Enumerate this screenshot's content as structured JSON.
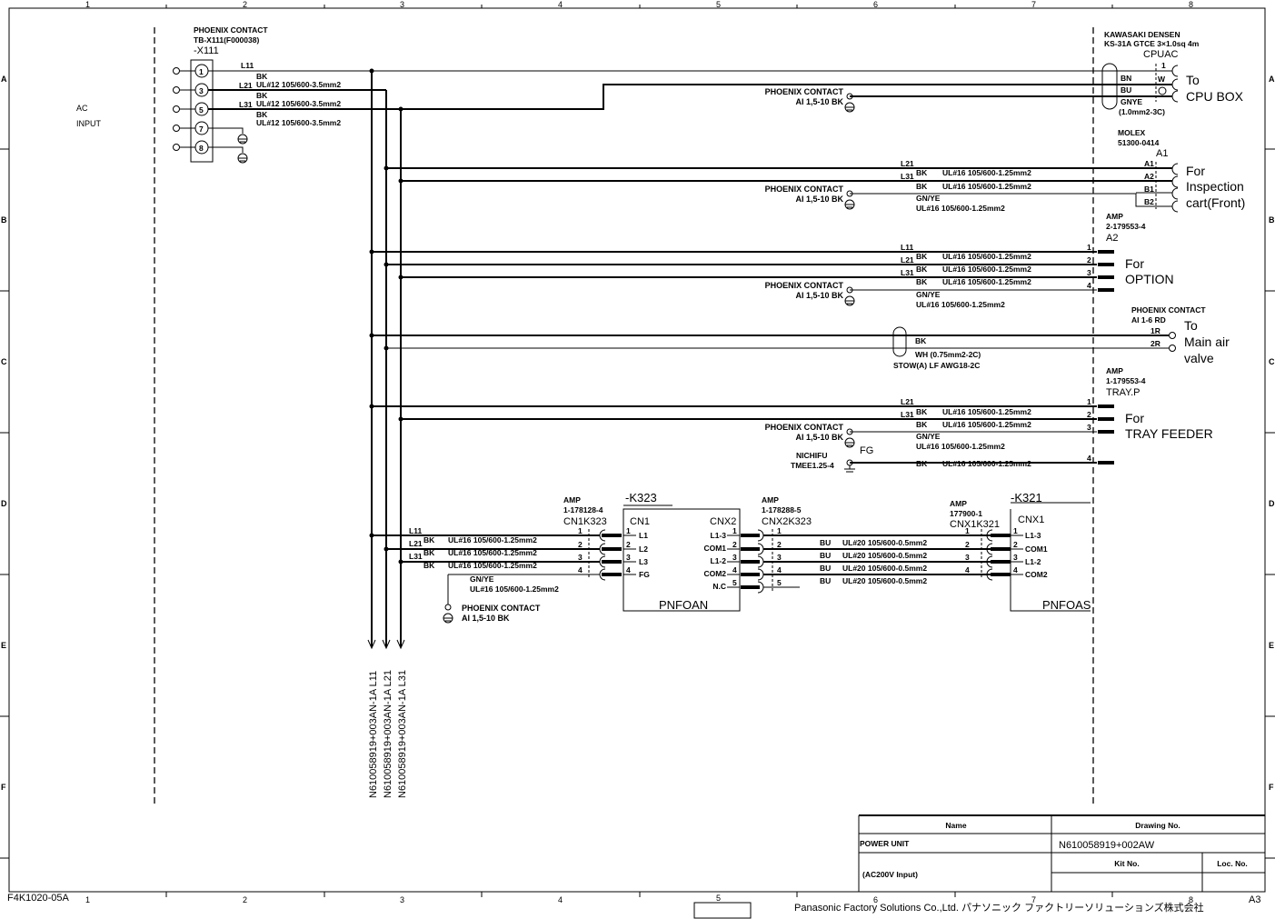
{
  "sheet": {
    "cols": [
      "1",
      "2",
      "3",
      "4",
      "5",
      "6",
      "7",
      "8"
    ],
    "rows": [
      "A",
      "B",
      "C",
      "D",
      "E",
      "F"
    ],
    "form_id": "F4K1020-05A",
    "size": "A3"
  },
  "ac_input": {
    "line1": "AC",
    "line2": "INPUT"
  },
  "terminal": {
    "maker": "PHOENIX CONTACT",
    "part": "TB-X111(F000038)",
    "ref": "-X111",
    "pins": [
      "1",
      "3",
      "5",
      "7",
      "8"
    ]
  },
  "wires": {
    "l11": "L11",
    "l21": "L21",
    "l31": "L31",
    "bk": "BK",
    "bu": "BU",
    "gnye": "GN/YE",
    "spec12": "UL#12 105/600-3.5mm2",
    "spec16": "UL#16 105/600-1.25mm2",
    "spec20": "UL#20 105/600-0.5mm2"
  },
  "phoenix_ground": {
    "maker": "PHOENIX CONTACT",
    "part": "AI 1,5-10 BK"
  },
  "cpu": {
    "maker": "KAWASAKI DENSEN",
    "cable": "KS-31A GTCE 3×1.0sq 4m",
    "conn": "CPUAC",
    "bn": "BN",
    "bu": "BU",
    "gnye": "GNYE",
    "size": "(1.0mm2-3C)",
    "pin1": "1",
    "pinw": "W",
    "dest1": "To",
    "dest2": "CPU BOX"
  },
  "inspection": {
    "maker": "MOLEX",
    "part": "51300-0414",
    "conn": "A1",
    "pins": [
      "A1",
      "A2",
      "B1",
      "B2"
    ],
    "dest1": "For",
    "dest2": "Inspection",
    "dest3": "cart(Front)"
  },
  "option": {
    "maker": "AMP",
    "part": "2-179553-4",
    "conn": "A2",
    "pins": [
      "1",
      "2",
      "3",
      "4"
    ],
    "dest1": "For",
    "dest2": "OPTION"
  },
  "air_valve": {
    "maker": "PHOENIX CONTACT",
    "part": "AI 1-6 RD",
    "pins": [
      "1R",
      "2R"
    ],
    "bk": "BK",
    "wh": "WH (0.75mm2-2C)",
    "cable": "STOW(A) LF AWG18-2C",
    "dest1": "To",
    "dest2": "Main air",
    "dest3": "valve"
  },
  "tray": {
    "maker": "AMP",
    "part": "1-179553-4",
    "conn": "TRAY.P",
    "pins": [
      "1",
      "2",
      "3",
      "4"
    ],
    "fg_maker": "NICHIFU",
    "fg_part": "TMEE1.25-4",
    "fg": "FG",
    "dest1": "For",
    "dest2": "TRAY FEEDER"
  },
  "k323": {
    "ref": "-K323",
    "name": "PNFOAN",
    "cn1": "CN1",
    "cnx2": "CNX2",
    "cn1_pins": [
      "L1",
      "L2",
      "L3",
      "FG"
    ],
    "cnx2_pins": [
      "L1-3",
      "COM1",
      "L1-2",
      "COM2",
      "N.C"
    ],
    "nums": [
      "1",
      "2",
      "3",
      "4",
      "5"
    ],
    "cn1_conn": {
      "maker": "AMP",
      "part": "1-178128-4",
      "name": "CN1K323"
    },
    "cnx2_conn": {
      "maker": "AMP",
      "part": "1-178288-5",
      "name": "CNX2K323"
    }
  },
  "k321": {
    "ref": "-K321",
    "name": "PNFOAS",
    "cnx1": "CNX1",
    "cnx1_pins": [
      "L1-3",
      "COM1",
      "L1-2",
      "COM2"
    ],
    "conn": {
      "maker": "AMP",
      "part": "177900-1",
      "name": "CNX1K321"
    }
  },
  "bus_refs": [
    "N610058919+003AN-1A  L11",
    "N610058919+003AN-1A  L21",
    "N610058919+003AN-1A  L31"
  ],
  "title_block": {
    "name_hdr": "Name",
    "drawing_hdr": "Drawing No.",
    "name": "POWER UNIT",
    "sub": "(AC200V Input)",
    "drawing_no": "N610058919+002AW",
    "kit_hdr": "Kit No.",
    "loc_hdr": "Loc. No."
  },
  "footer": "Panasonic Factory Solutions Co.,Ltd. パナソニック ファクトリーソリューションズ株式会社"
}
